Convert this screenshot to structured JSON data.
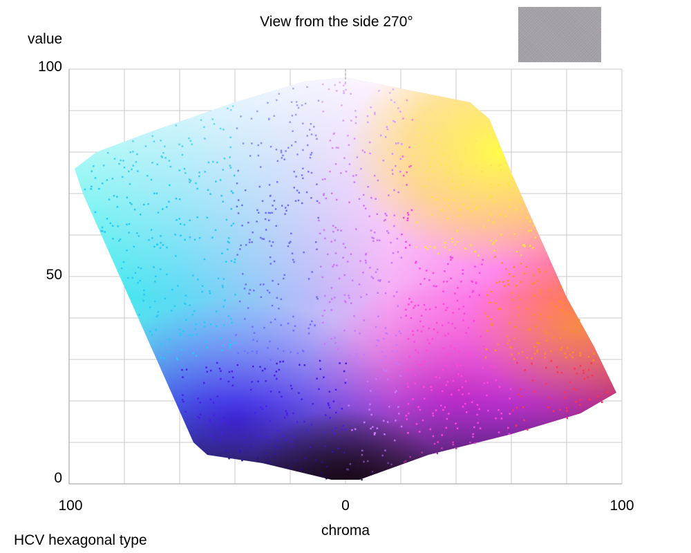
{
  "title": "View from the side 270°",
  "footnote": "HCV hexagonal type",
  "chart_data": {
    "type": "scatter",
    "title": "View from the side 270°",
    "xlabel": "chroma",
    "ylabel": "value",
    "x_tick_labels": [
      "100",
      "0",
      "100"
    ],
    "y_tick_labels": [
      "100",
      "50",
      "0"
    ],
    "xlim": [
      -100,
      100
    ],
    "ylim": [
      0,
      100
    ],
    "grid": true,
    "colors": {
      "cyan": "#20f0e8",
      "blue": "#3020ff",
      "violet": "#8a2be2",
      "magenta": "#ff40f0",
      "red": "#ff2040",
      "orange": "#ff8020",
      "yellow": "#ffff40",
      "white": "#ffffff",
      "black": "#200818"
    },
    "outline": [
      {
        "x": -98,
        "y": 76
      },
      {
        "x": -90,
        "y": 80
      },
      {
        "x": -70,
        "y": 85
      },
      {
        "x": -40,
        "y": 92
      },
      {
        "x": -15,
        "y": 97
      },
      {
        "x": 0,
        "y": 98
      },
      {
        "x": 15,
        "y": 96
      },
      {
        "x": 45,
        "y": 92
      },
      {
        "x": 52,
        "y": 88
      },
      {
        "x": 60,
        "y": 75
      },
      {
        "x": 70,
        "y": 60
      },
      {
        "x": 80,
        "y": 45
      },
      {
        "x": 90,
        "y": 33
      },
      {
        "x": 98,
        "y": 22
      },
      {
        "x": 85,
        "y": 17
      },
      {
        "x": 60,
        "y": 12
      },
      {
        "x": 30,
        "y": 7
      },
      {
        "x": 5,
        "y": 1
      },
      {
        "x": -5,
        "y": 1
      },
      {
        "x": -30,
        "y": 5
      },
      {
        "x": -50,
        "y": 7
      },
      {
        "x": -55,
        "y": 10
      },
      {
        "x": -65,
        "y": 25
      },
      {
        "x": -75,
        "y": 40
      },
      {
        "x": -85,
        "y": 55
      },
      {
        "x": -95,
        "y": 70
      }
    ]
  }
}
